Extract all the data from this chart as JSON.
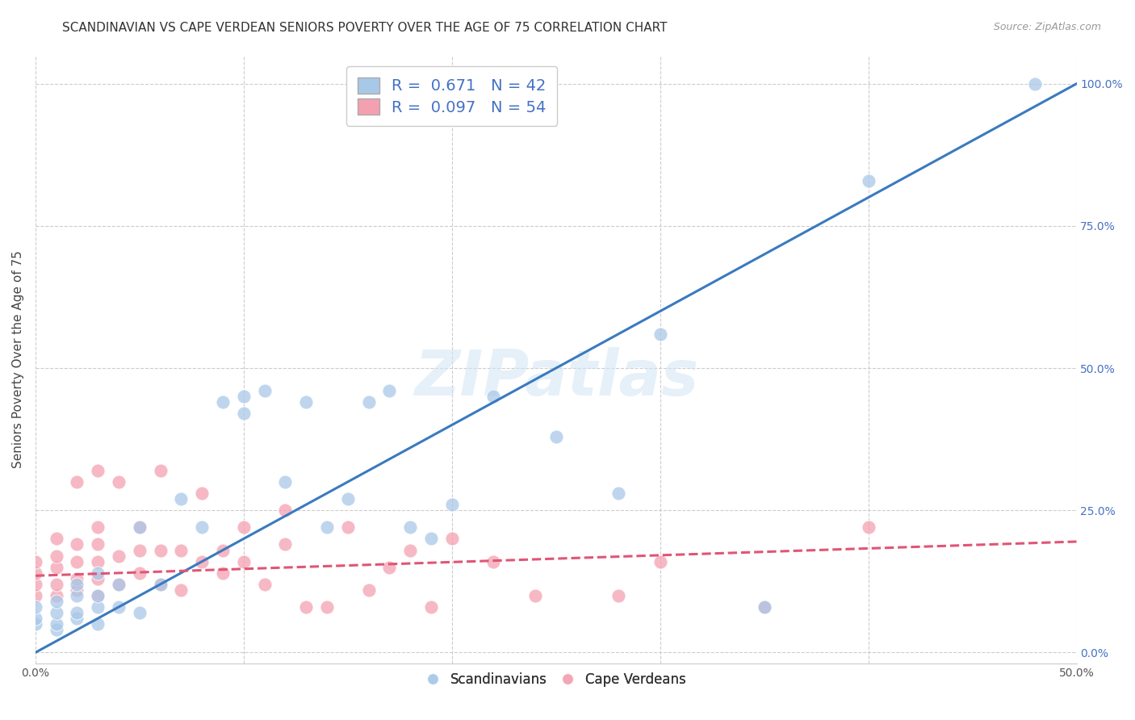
{
  "title": "SCANDINAVIAN VS CAPE VERDEAN SENIORS POVERTY OVER THE AGE OF 75 CORRELATION CHART",
  "source_text": "Source: ZipAtlas.com",
  "ylabel": "Seniors Poverty Over the Age of 75",
  "xlim": [
    0.0,
    0.5
  ],
  "ylim": [
    -0.02,
    1.05
  ],
  "xticks": [
    0.0,
    0.1,
    0.2,
    0.3,
    0.4,
    0.5
  ],
  "xticklabels": [
    "0.0%",
    "",
    "",
    "",
    "",
    "50.0%"
  ],
  "yticks_right": [
    0.0,
    0.25,
    0.5,
    0.75,
    1.0
  ],
  "yticklabels_right": [
    "0.0%",
    "25.0%",
    "50.0%",
    "75.0%",
    "100.0%"
  ],
  "blue_color": "#a8c8e8",
  "pink_color": "#f4a0b0",
  "blue_line_color": "#3a7abf",
  "pink_line_color": "#e05575",
  "watermark_text": "ZIPatlas",
  "legend_blue_r": "0.671",
  "legend_blue_n": "42",
  "legend_pink_r": "0.097",
  "legend_pink_n": "54",
  "blue_scatter_x": [
    0.0,
    0.0,
    0.0,
    0.01,
    0.01,
    0.01,
    0.01,
    0.02,
    0.02,
    0.02,
    0.02,
    0.03,
    0.03,
    0.03,
    0.03,
    0.04,
    0.04,
    0.05,
    0.05,
    0.06,
    0.07,
    0.08,
    0.09,
    0.1,
    0.1,
    0.11,
    0.12,
    0.13,
    0.14,
    0.15,
    0.16,
    0.17,
    0.18,
    0.19,
    0.2,
    0.22,
    0.25,
    0.28,
    0.3,
    0.35,
    0.4,
    0.48
  ],
  "blue_scatter_y": [
    0.05,
    0.06,
    0.08,
    0.04,
    0.05,
    0.07,
    0.09,
    0.06,
    0.07,
    0.1,
    0.12,
    0.05,
    0.08,
    0.1,
    0.14,
    0.08,
    0.12,
    0.07,
    0.22,
    0.12,
    0.27,
    0.22,
    0.44,
    0.45,
    0.42,
    0.46,
    0.3,
    0.44,
    0.22,
    0.27,
    0.44,
    0.46,
    0.22,
    0.2,
    0.26,
    0.45,
    0.38,
    0.28,
    0.56,
    0.08,
    0.83,
    1.0
  ],
  "pink_scatter_x": [
    0.0,
    0.0,
    0.0,
    0.0,
    0.01,
    0.01,
    0.01,
    0.01,
    0.01,
    0.02,
    0.02,
    0.02,
    0.02,
    0.02,
    0.03,
    0.03,
    0.03,
    0.03,
    0.03,
    0.03,
    0.04,
    0.04,
    0.04,
    0.05,
    0.05,
    0.05,
    0.06,
    0.06,
    0.06,
    0.07,
    0.07,
    0.08,
    0.08,
    0.09,
    0.09,
    0.1,
    0.1,
    0.11,
    0.12,
    0.12,
    0.13,
    0.14,
    0.15,
    0.16,
    0.17,
    0.18,
    0.19,
    0.2,
    0.22,
    0.24,
    0.28,
    0.3,
    0.35,
    0.4
  ],
  "pink_scatter_y": [
    0.1,
    0.12,
    0.14,
    0.16,
    0.1,
    0.12,
    0.15,
    0.17,
    0.2,
    0.11,
    0.13,
    0.16,
    0.19,
    0.3,
    0.1,
    0.13,
    0.16,
    0.19,
    0.22,
    0.32,
    0.12,
    0.17,
    0.3,
    0.14,
    0.18,
    0.22,
    0.12,
    0.18,
    0.32,
    0.11,
    0.18,
    0.16,
    0.28,
    0.14,
    0.18,
    0.16,
    0.22,
    0.12,
    0.19,
    0.25,
    0.08,
    0.08,
    0.22,
    0.11,
    0.15,
    0.18,
    0.08,
    0.2,
    0.16,
    0.1,
    0.1,
    0.16,
    0.08,
    0.22
  ],
  "blue_trend_x": [
    0.0,
    0.5
  ],
  "blue_trend_y": [
    0.0,
    1.0
  ],
  "pink_trend_x": [
    0.0,
    0.5
  ],
  "pink_trend_y": [
    0.135,
    0.195
  ],
  "bg_color": "#ffffff",
  "grid_color": "#cccccc",
  "title_fontsize": 11,
  "axis_label_fontsize": 11,
  "tick_fontsize": 10,
  "legend_box_color": "#a8c8e8",
  "legend_box2_color": "#f4a0b0"
}
